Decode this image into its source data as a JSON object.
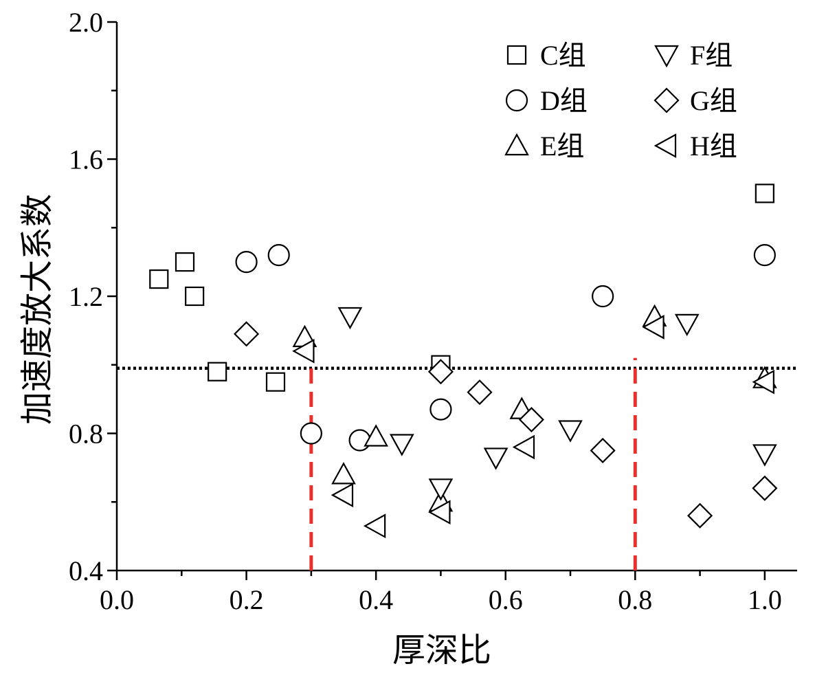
{
  "chart_data": {
    "type": "scatter",
    "xlabel": "厚深比",
    "ylabel": "加速度放大系数",
    "xlim": [
      0.0,
      1.05
    ],
    "ylim": [
      0.4,
      2.0
    ],
    "xticks": [
      "0.0",
      "0.2",
      "0.4",
      "0.6",
      "0.8",
      "1.0"
    ],
    "yticks": [
      "0.4",
      "0.8",
      "1.2",
      "1.6",
      "2.0"
    ],
    "grid": false,
    "legend_position": "top-right",
    "reference_lines": [
      {
        "orientation": "horizontal",
        "value": 0.99,
        "style": "dotted",
        "color": "#000000"
      },
      {
        "orientation": "vertical",
        "value": 0.3,
        "from": 0.4,
        "to": 1.02,
        "style": "dashed",
        "color": "#e8312a"
      },
      {
        "orientation": "vertical",
        "value": 0.8,
        "from": 0.4,
        "to": 1.02,
        "style": "dashed",
        "color": "#e8312a"
      }
    ],
    "series": [
      {
        "name": "C组",
        "marker": "square",
        "points": [
          [
            0.065,
            1.25
          ],
          [
            0.105,
            1.3
          ],
          [
            0.12,
            1.2
          ],
          [
            0.155,
            0.98
          ],
          [
            0.245,
            0.95
          ],
          [
            0.5,
            1.0
          ],
          [
            1.0,
            1.5
          ]
        ]
      },
      {
        "name": "D组",
        "marker": "circle",
        "points": [
          [
            0.2,
            1.3
          ],
          [
            0.25,
            1.32
          ],
          [
            0.3,
            0.8
          ],
          [
            0.375,
            0.78
          ],
          [
            0.5,
            0.87
          ],
          [
            0.75,
            1.2
          ],
          [
            1.0,
            1.32
          ]
        ]
      },
      {
        "name": "E组",
        "marker": "triangle-up",
        "points": [
          [
            0.29,
            1.08
          ],
          [
            0.35,
            0.68
          ],
          [
            0.4,
            0.79
          ],
          [
            0.5,
            0.6
          ],
          [
            0.625,
            0.87
          ],
          [
            0.83,
            1.14
          ],
          [
            1.0,
            0.96
          ]
        ]
      },
      {
        "name": "F组",
        "marker": "triangle-down",
        "points": [
          [
            0.36,
            1.14
          ],
          [
            0.44,
            0.77
          ],
          [
            0.5,
            0.64
          ],
          [
            0.585,
            0.73
          ],
          [
            0.7,
            0.81
          ],
          [
            0.88,
            1.12
          ],
          [
            1.0,
            0.74
          ]
        ]
      },
      {
        "name": "G组",
        "marker": "diamond",
        "points": [
          [
            0.2,
            1.09
          ],
          [
            0.5,
            0.98
          ],
          [
            0.56,
            0.92
          ],
          [
            0.64,
            0.84
          ],
          [
            0.75,
            0.75
          ],
          [
            0.9,
            0.56
          ],
          [
            1.0,
            0.64
          ]
        ]
      },
      {
        "name": "H组",
        "marker": "triangle-left",
        "points": [
          [
            0.29,
            1.04
          ],
          [
            0.35,
            0.62
          ],
          [
            0.4,
            0.53
          ],
          [
            0.5,
            0.57
          ],
          [
            0.63,
            0.76
          ],
          [
            0.83,
            1.11
          ],
          [
            1.0,
            0.95
          ]
        ]
      }
    ]
  }
}
